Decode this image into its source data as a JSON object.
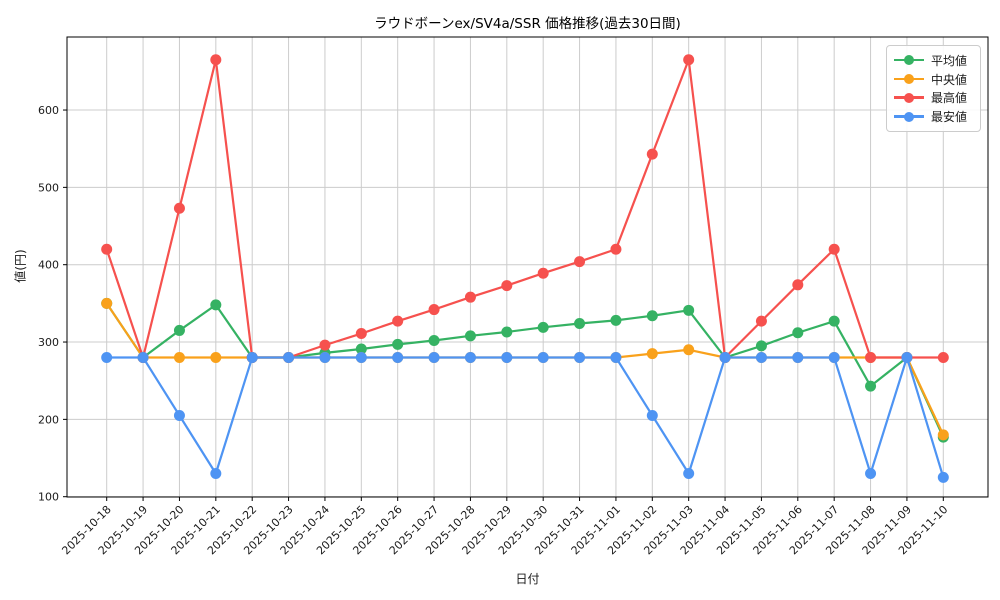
{
  "title": "ラウドボーンex/SV4a/SSR 価格推移(過去30日間)",
  "chart_data": {
    "type": "line",
    "title": "ラウドボーンex/SV4a/SSR 価格推移(過去30日間)",
    "xlabel": "日付",
    "ylabel": "値(円)",
    "grid": true,
    "grid_color": "#cccccc",
    "legend_position": "upper-right",
    "x_tick_rotation": 45,
    "y_ticks": [
      100,
      200,
      300,
      400,
      500,
      600
    ],
    "ylim": [
      97,
      695
    ],
    "x": [
      "2025-10-18",
      "2025-10-19",
      "2025-10-20",
      "2025-10-21",
      "2025-10-22",
      "2025-10-23",
      "2025-10-24",
      "2025-10-25",
      "2025-10-26",
      "2025-10-27",
      "2025-10-28",
      "2025-10-29",
      "2025-10-30",
      "2025-10-31",
      "2025-11-01",
      "2025-11-02",
      "2025-11-03",
      "2025-11-04",
      "2025-11-05",
      "2025-11-06",
      "2025-11-07",
      "2025-11-08",
      "2025-11-09",
      "2025-11-10"
    ],
    "series": [
      {
        "key": "average",
        "name": "平均値",
        "color": "#35b263",
        "values": [
          350,
          280,
          315,
          348,
          280,
          280,
          286,
          291,
          297,
          302,
          308,
          313,
          319,
          324,
          328,
          334,
          341,
          280,
          295,
          312,
          327,
          243,
          280,
          177
        ]
      },
      {
        "key": "median",
        "name": "中央値",
        "color": "#f9a11b",
        "values": [
          350,
          280,
          280,
          280,
          280,
          280,
          280,
          280,
          280,
          280,
          280,
          280,
          280,
          280,
          280,
          285,
          290,
          280,
          280,
          280,
          280,
          280,
          280,
          180
        ]
      },
      {
        "key": "highest",
        "name": "最高値",
        "color": "#f6514e",
        "values": [
          420,
          280,
          473,
          665,
          280,
          280,
          296,
          311,
          327,
          342,
          358,
          373,
          389,
          404,
          420,
          543,
          665,
          280,
          327,
          374,
          420,
          280,
          280,
          280
        ]
      },
      {
        "key": "lowest",
        "name": "最安値",
        "color": "#4e94f3",
        "values": [
          280,
          280,
          205,
          130,
          280,
          280,
          280,
          280,
          280,
          280,
          280,
          280,
          280,
          280,
          280,
          205,
          130,
          280,
          280,
          280,
          280,
          130,
          280,
          125
        ]
      }
    ]
  }
}
